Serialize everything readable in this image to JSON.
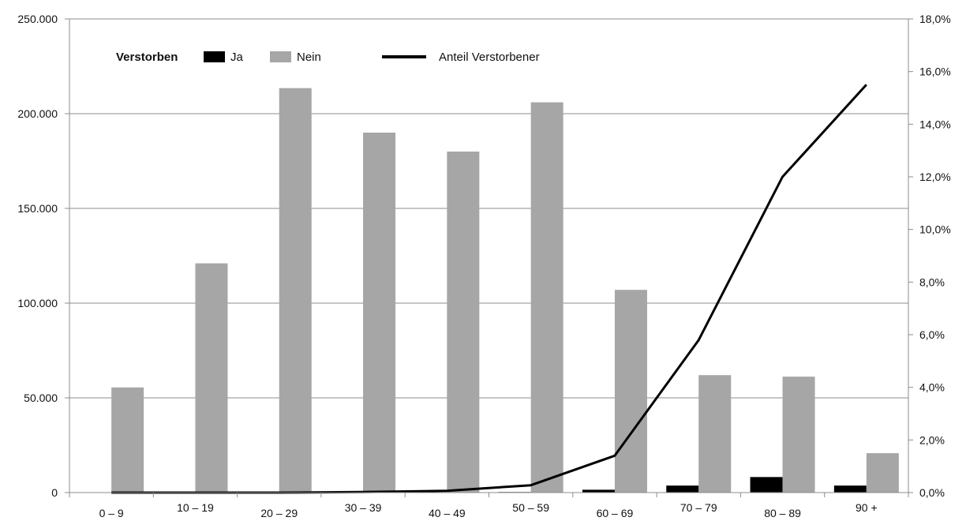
{
  "chart_data": {
    "type": "bar",
    "categories": [
      "0 – 9",
      "10 – 19",
      "20 – 29",
      "30 – 39",
      "40 – 49",
      "50 – 59",
      "60 – 69",
      "70 – 79",
      "80 – 89",
      "90 +"
    ],
    "legend": {
      "title": "Verstorben",
      "placement": "top-left"
    },
    "series": [
      {
        "name": "Ja",
        "type": "bar",
        "axis": "left",
        "color": "#000000",
        "values": [
          0,
          0,
          0,
          0,
          100,
          300,
          1500,
          3700,
          8200,
          3700
        ]
      },
      {
        "name": "Nein",
        "type": "bar",
        "axis": "left",
        "color": "#a6a6a6",
        "values": [
          55500,
          121000,
          213500,
          190000,
          180000,
          206000,
          107000,
          62000,
          61200,
          20800
        ]
      },
      {
        "name": "Anteil Verstorbener",
        "type": "line",
        "axis": "right",
        "color": "#000000",
        "values": [
          0.0,
          0.0,
          0.0,
          0.02,
          0.07,
          0.28,
          1.4,
          5.8,
          12.0,
          15.5
        ]
      }
    ],
    "y_left": {
      "ylim": [
        0,
        250000
      ],
      "ticks": [
        0,
        50000,
        100000,
        150000,
        200000,
        250000
      ],
      "tick_labels": [
        "0",
        "50.000",
        "100.000",
        "150.000",
        "200.000",
        "250.000"
      ]
    },
    "y_right": {
      "ylim": [
        0,
        18
      ],
      "ticks": [
        0,
        2,
        4,
        6,
        8,
        10,
        12,
        14,
        16,
        18
      ],
      "tick_labels": [
        "0,0%",
        "2,0%",
        "4,0%",
        "6,0%",
        "8,0%",
        "10,0%",
        "12,0%",
        "14,0%",
        "16,0%",
        "18,0%"
      ]
    },
    "grid": true,
    "gridline_color": "#8c8c8c"
  }
}
